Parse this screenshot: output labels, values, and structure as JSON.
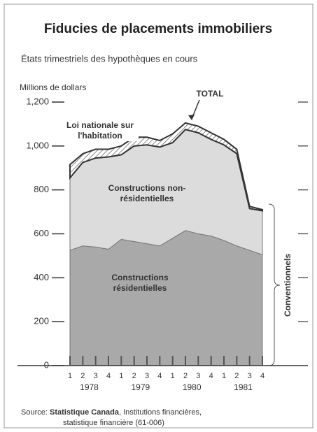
{
  "chart_data": {
    "type": "stacked_area",
    "title": "Fiducies de placements immobiliers",
    "subtitle": "États trimestriels des hypothèques en cours",
    "y_label": "Millions de dollars",
    "categories": [
      "1",
      "2",
      "3",
      "4",
      "1",
      "2",
      "3",
      "4",
      "1",
      "2",
      "3",
      "4",
      "1",
      "2",
      "3",
      "4"
    ],
    "years": [
      "1978",
      "1979",
      "1980",
      "1981"
    ],
    "series": [
      {
        "name": "Constructions résidentielles",
        "color": "#a9a9a9",
        "values": [
          525,
          545,
          540,
          530,
          575,
          565,
          555,
          545,
          580,
          615,
          600,
          590,
          570,
          545,
          525,
          505
        ]
      },
      {
        "name": "Constructions non-résidentielles",
        "color": "#dcdcdc",
        "values": [
          330,
          380,
          405,
          420,
          385,
          435,
          450,
          450,
          435,
          460,
          460,
          440,
          435,
          420,
          190,
          200
        ]
      },
      {
        "name": "Loi nationale sur l'habitation",
        "color": "#8a8a8a",
        "values": [
          60,
          40,
          40,
          35,
          40,
          40,
          35,
          30,
          40,
          30,
          30,
          30,
          25,
          20,
          10,
          5
        ]
      }
    ],
    "total_label": "TOTAL",
    "bracket_label": "Conventionnels",
    "ylim": [
      0,
      1200
    ],
    "yticks": [
      0,
      200,
      400,
      600,
      800,
      {
        "value": 1000,
        "label": "1,000"
      },
      {
        "value": 1200,
        "label": "1,200"
      }
    ],
    "source": {
      "prefix": "Source:",
      "bold": "Statistique Canada",
      "rest": ", Institutions financières,",
      "line2": "statistique financière (61-006)"
    }
  }
}
